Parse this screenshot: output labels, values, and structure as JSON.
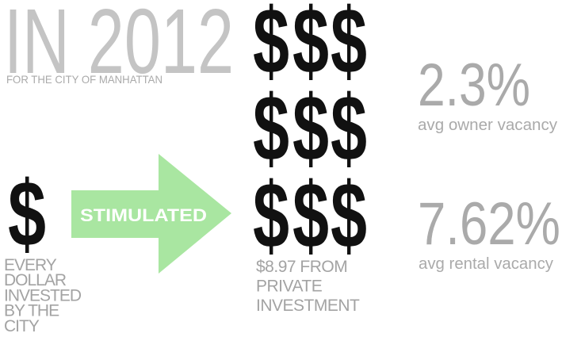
{
  "headline": "IN 2012",
  "subheadline": "FOR THE CITY OF MANHATTAN",
  "symbol": "$",
  "city_caption": [
    "EVERY",
    "DOLLAR",
    "INVESTED",
    "BY THE",
    "CITY"
  ],
  "arrow_label": "STIMULATED",
  "private_caption": [
    "$8.97 FROM",
    "PRIVATE",
    "INVESTMENT"
  ],
  "stats": [
    {
      "value": "2.3%",
      "label": "avg owner vacancy"
    },
    {
      "value": "7.62%",
      "label": "avg rental vacancy"
    }
  ]
}
